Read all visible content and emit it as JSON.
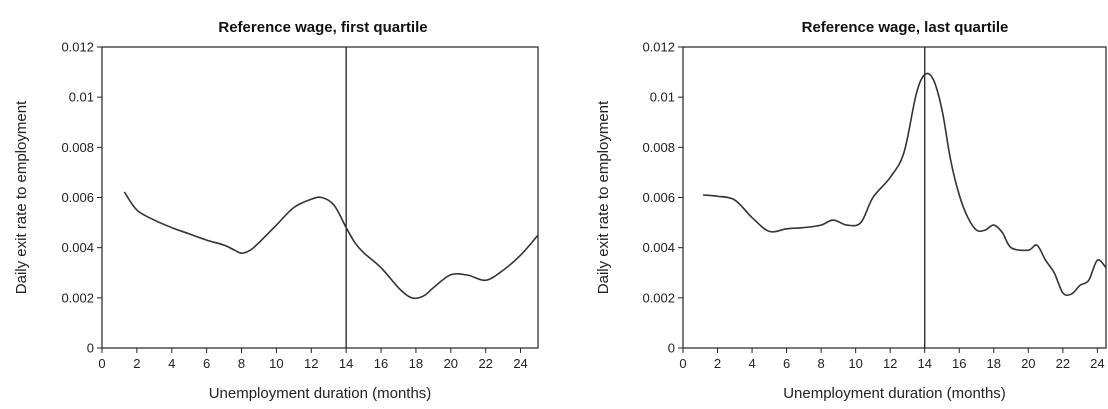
{
  "chart_data": [
    {
      "type": "line",
      "title": "Reference wage, first quartile",
      "xlabel": "Unemployment duration (months)",
      "ylabel": "Daily exit rate to employment",
      "xlim": [
        0,
        25
      ],
      "ylim": [
        0,
        0.012
      ],
      "xticks": [
        "0",
        "2",
        "4",
        "6",
        "8",
        "10",
        "12",
        "14",
        "16",
        "18",
        "20",
        "22",
        "24"
      ],
      "yticks": [
        "0",
        "0.002",
        "0.004",
        "0.006",
        "0.008",
        "0.01",
        "0.012"
      ],
      "grid": false,
      "vertical_line_x": 14,
      "series": [
        {
          "x": [
            1.3,
            2,
            3,
            4,
            5,
            6,
            7,
            7.6,
            8,
            8.5,
            9,
            10,
            11,
            12,
            12.6,
            13.3,
            14,
            14.5,
            15,
            16,
            17,
            17.6,
            18,
            18.5,
            19,
            20,
            21,
            22,
            23,
            24,
            25
          ],
          "y": [
            0.0062,
            0.0055,
            0.0051,
            0.0048,
            0.00455,
            0.0043,
            0.0041,
            0.0039,
            0.00378,
            0.0039,
            0.0042,
            0.0049,
            0.0056,
            0.00593,
            0.006,
            0.0057,
            0.0048,
            0.0042,
            0.0038,
            0.0032,
            0.0024,
            0.00205,
            0.00198,
            0.0021,
            0.0024,
            0.00292,
            0.0029,
            0.0027,
            0.0031,
            0.0037,
            0.0045
          ]
        }
      ]
    },
    {
      "type": "line",
      "title": "Reference wage, last quartile",
      "xlabel": "Unemployment duration (months)",
      "ylabel": "Daily exit rate to employment",
      "xlim": [
        0,
        24.5
      ],
      "ylim": [
        0,
        0.012
      ],
      "xticks": [
        "0",
        "2",
        "4",
        "6",
        "8",
        "10",
        "12",
        "14",
        "16",
        "18",
        "20",
        "22",
        "24"
      ],
      "yticks": [
        "0",
        "0.002",
        "0.004",
        "0.006",
        "0.008",
        "0.01",
        "0.012"
      ],
      "grid": false,
      "vertical_line_x": 14,
      "series": [
        {
          "x": [
            1.2,
            2,
            3,
            4,
            5,
            6,
            7,
            8,
            8.7,
            9.5,
            10.3,
            11,
            12,
            12.8,
            13.5,
            14,
            14.5,
            15,
            15.5,
            16,
            16.5,
            17,
            17.5,
            18,
            18.5,
            19,
            20,
            20.5,
            21,
            21.5,
            22,
            22.5,
            23,
            23.5,
            24,
            24.5
          ],
          "y": [
            0.0061,
            0.00605,
            0.0059,
            0.0052,
            0.00465,
            0.00475,
            0.0048,
            0.0049,
            0.0051,
            0.0049,
            0.005,
            0.006,
            0.0068,
            0.0078,
            0.0101,
            0.0109,
            0.0107,
            0.0095,
            0.0075,
            0.0061,
            0.0052,
            0.0047,
            0.0047,
            0.0049,
            0.0046,
            0.004,
            0.0039,
            0.0041,
            0.0035,
            0.003,
            0.0022,
            0.00215,
            0.0025,
            0.0027,
            0.0035,
            0.0032
          ]
        }
      ]
    }
  ]
}
